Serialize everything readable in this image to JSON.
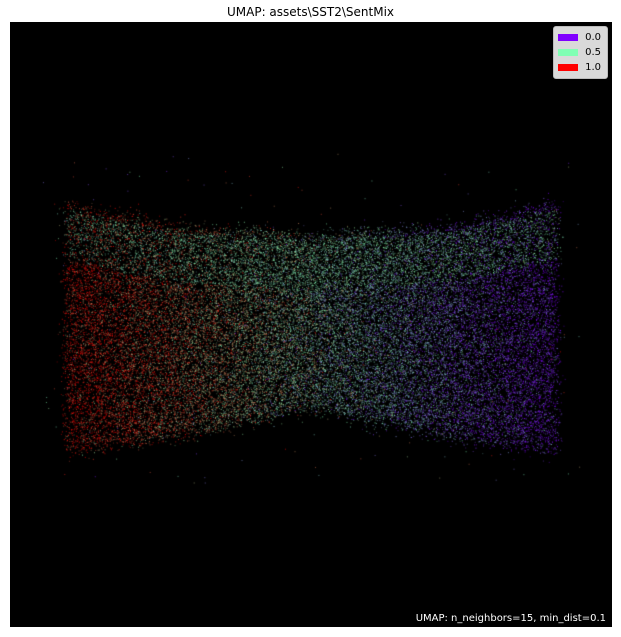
{
  "chart_data": {
    "type": "scatter",
    "title": "UMAP: assets\\SST2\\SentMix",
    "annotation": "UMAP: n_neighbors=15, min_dist=0.1",
    "background": "#000000",
    "grid": false,
    "axes_visible": false,
    "legend": {
      "placement": "top-right",
      "entries": [
        {
          "label": "0.0",
          "color": "#8000ff"
        },
        {
          "label": "0.5",
          "color": "#80ffb4"
        },
        {
          "label": "1.0",
          "color": "#ff0000"
        }
      ]
    },
    "series": [
      {
        "name": "0.0",
        "color": "#8000ff"
      },
      {
        "name": "0.5",
        "color": "#80ffb4"
      },
      {
        "name": "1.0",
        "color": "#ff0000"
      }
    ]
  }
}
